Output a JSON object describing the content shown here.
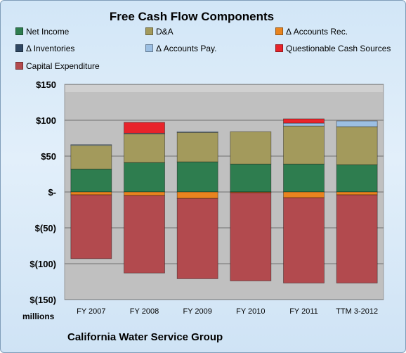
{
  "chart_data": {
    "type": "bar",
    "stacked": true,
    "title": "Free Cash Flow Components",
    "subtitle": "California Water Service Group",
    "units_label": "millions",
    "categories": [
      "FY 2007",
      "FY 2008",
      "FY 2009",
      "FY 2010",
      "FY 2011",
      "TTM 3-2012"
    ],
    "ylim": [
      -150,
      150
    ],
    "yticks": [
      150,
      100,
      50,
      0,
      -50,
      -100,
      -150
    ],
    "ytick_labels": [
      "$150",
      "$100",
      "$50",
      "$-",
      "$(50)",
      "$(100)",
      "$(150)"
    ],
    "grid": true,
    "legend_position": "top",
    "series": [
      {
        "name": "Net Income",
        "color": "#2e7d4f",
        "values": [
          32,
          41,
          42,
          39,
          39,
          38
        ]
      },
      {
        "name": "D&A",
        "color": "#a39a5c",
        "values": [
          33,
          40,
          41,
          45,
          53,
          53
        ]
      },
      {
        "name": "Δ Accounts Rec.",
        "color": "#e8841f",
        "values": [
          -4,
          -5,
          -9,
          -1,
          -8,
          -4
        ]
      },
      {
        "name": "Δ Inventories",
        "color": "#2f4763",
        "values": [
          0,
          0,
          0,
          0,
          0,
          0
        ]
      },
      {
        "name": "Δ Accounts Pay.",
        "color": "#9cbfe3",
        "values": [
          1,
          1,
          1,
          0,
          4,
          8
        ]
      },
      {
        "name": "Questionable Cash Sources",
        "color": "#e8242b",
        "values": [
          0,
          15,
          0,
          0,
          6,
          0
        ]
      },
      {
        "name": "Capital Expenditure",
        "color": "#b24a4e",
        "values": [
          -89,
          -108,
          -112,
          -123,
          -119,
          -123
        ]
      }
    ]
  }
}
